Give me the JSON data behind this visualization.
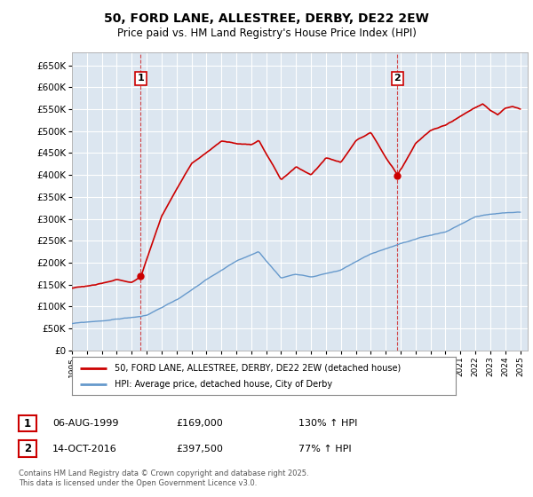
{
  "title": "50, FORD LANE, ALLESTREE, DERBY, DE22 2EW",
  "subtitle": "Price paid vs. HM Land Registry's House Price Index (HPI)",
  "red_color": "#cc0000",
  "blue_color": "#6699cc",
  "background_color": "#dce6f0",
  "grid_color": "#ffffff",
  "sale1_x": 1999.6,
  "sale1_y": 169000,
  "sale2_x": 2016.78,
  "sale2_y": 397500,
  "legend_entries": [
    "50, FORD LANE, ALLESTREE, DERBY, DE22 2EW (detached house)",
    "HPI: Average price, detached house, City of Derby"
  ],
  "table_rows": [
    {
      "num": "1",
      "date": "06-AUG-1999",
      "price": "£169,000",
      "hpi": "130% ↑ HPI"
    },
    {
      "num": "2",
      "date": "14-OCT-2016",
      "price": "£397,500",
      "hpi": "77% ↑ HPI"
    }
  ],
  "footer_text": "Contains HM Land Registry data © Crown copyright and database right 2025.\nThis data is licensed under the Open Government Licence v3.0.",
  "ylim": [
    0,
    680000
  ],
  "yticks": [
    0,
    50000,
    100000,
    150000,
    200000,
    250000,
    300000,
    350000,
    400000,
    450000,
    500000,
    550000,
    600000,
    650000
  ],
  "xlim": [
    1995,
    2025.5
  ]
}
